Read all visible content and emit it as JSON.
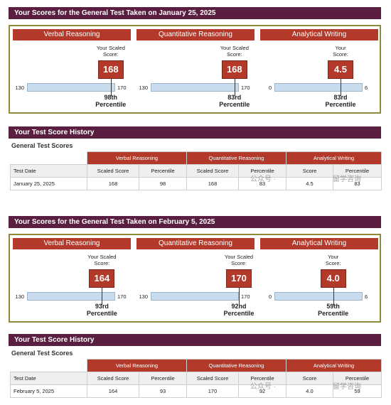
{
  "reports": [
    {
      "title": "Your Scores for the General Test Taken on January 25, 2025",
      "measures": [
        {
          "name": "Verbal Reasoning",
          "score_label": [
            "Your Scaled",
            "Score:"
          ],
          "score": "168",
          "scale_min": 130,
          "scale_max": 170,
          "percentile": [
            "98th",
            "Percentile"
          ]
        },
        {
          "name": "Quantitative Reasoning",
          "score_label": [
            "Your Scaled",
            "Score:"
          ],
          "score": "168",
          "scale_min": 130,
          "scale_max": 170,
          "percentile": [
            "83rd",
            "Percentile"
          ]
        },
        {
          "name": "Analytical Writing",
          "score_label": [
            "Your",
            "Score:"
          ],
          "score": "4.5",
          "scale_min": 0,
          "scale_max": 6,
          "percentile": [
            "83rd",
            "Percentile"
          ]
        }
      ],
      "history": {
        "title": "Your Test Score History",
        "subtitle": "General Test Scores",
        "groups": [
          "Verbal Reasoning",
          "Quantitative Reasoning",
          "Analytical Writing"
        ],
        "columns": [
          "Test Date",
          "Scaled Score",
          "Percentile",
          "Scaled Score",
          "Percentile",
          "Score",
          "Percentile"
        ],
        "row": [
          "January 25, 2025",
          "168",
          "98",
          "168",
          "83",
          "4.5",
          "83"
        ]
      }
    },
    {
      "title": "Your Scores for the General Test Taken on February 5, 2025",
      "measures": [
        {
          "name": "Verbal Reasoning",
          "score_label": [
            "Your Scaled",
            "Score:"
          ],
          "score": "164",
          "scale_min": 130,
          "scale_max": 170,
          "percentile": [
            "93rd",
            "Percentile"
          ]
        },
        {
          "name": "Quantitative Reasoning",
          "score_label": [
            "Your Scaled",
            "Score:"
          ],
          "score": "170",
          "scale_min": 130,
          "scale_max": 170,
          "percentile": [
            "92nd",
            "Percentile"
          ]
        },
        {
          "name": "Analytical Writing",
          "score_label": [
            "Your",
            "Score:"
          ],
          "score": "4.0",
          "scale_min": 0,
          "scale_max": 6,
          "percentile": [
            "59th",
            "Percentile"
          ]
        }
      ],
      "history": {
        "title": "Your Test Score History",
        "subtitle": "General Test Scores",
        "groups": [
          "Verbal Reasoning",
          "Quantitative Reasoning",
          "Analytical Writing"
        ],
        "columns": [
          "Test Date",
          "Scaled Score",
          "Percentile",
          "Scaled Score",
          "Percentile",
          "Score",
          "Percentile"
        ],
        "row": [
          "February 5, 2025",
          "164",
          "93",
          "170",
          "92",
          "4.0",
          "59"
        ]
      }
    }
  ],
  "watermarks": [
    "公众号 ·",
    "留学咨询",
    "公众号 ·",
    "留学咨询"
  ]
}
